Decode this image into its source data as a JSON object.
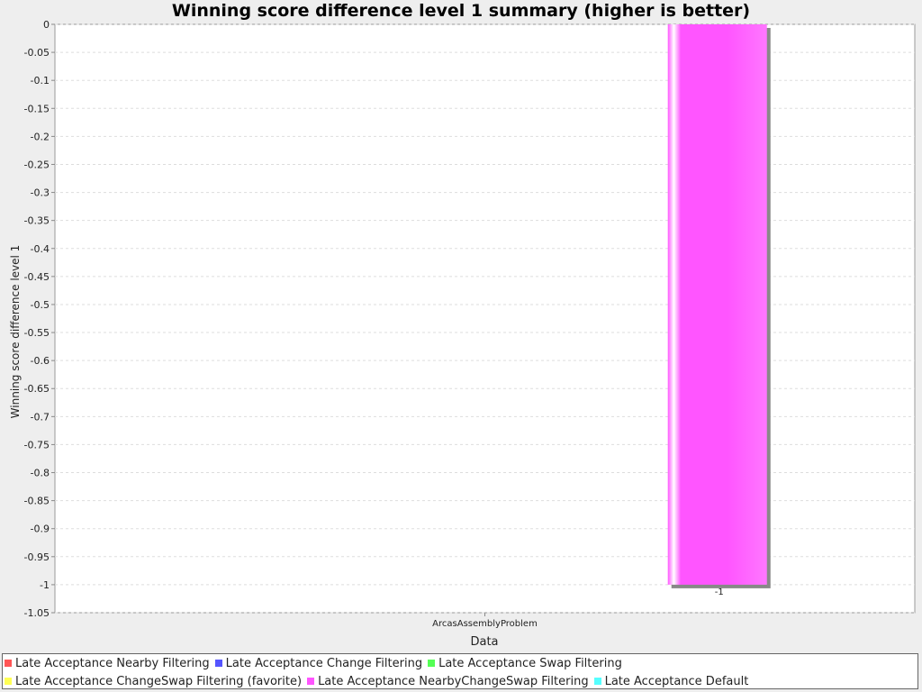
{
  "chart_data": {
    "type": "bar",
    "title": "Winning score difference level 1 summary (higher is better)",
    "xlabel": "Data",
    "ylabel": "Winning score difference level 1",
    "categories": [
      "ArcasAssemblyProblem"
    ],
    "ylim": [
      -1.05,
      0
    ],
    "yticks": [
      "0",
      "-0.05",
      "-0.1",
      "-0.15",
      "-0.2",
      "-0.25",
      "-0.3",
      "-0.35",
      "-0.4",
      "-0.45",
      "-0.5",
      "-0.55",
      "-0.6",
      "-0.65",
      "-0.7",
      "-0.75",
      "-0.8",
      "-0.85",
      "-0.9",
      "-0.95",
      "-1",
      "-1.05"
    ],
    "grid": true,
    "legend_position": "bottom",
    "series": [
      {
        "name": "Late Acceptance Nearby Filtering",
        "color": "#ff5555",
        "values": [
          null
        ]
      },
      {
        "name": "Late Acceptance Change Filtering",
        "color": "#5555ff",
        "values": [
          null
        ]
      },
      {
        "name": "Late Acceptance Swap Filtering",
        "color": "#55ff55",
        "values": [
          null
        ]
      },
      {
        "name": "Late Acceptance ChangeSwap Filtering (favorite)",
        "color": "#ffff55",
        "values": [
          null
        ]
      },
      {
        "name": "Late Acceptance NearbyChangeSwap Filtering",
        "color": "#ff55ff",
        "values": [
          -1
        ]
      },
      {
        "name": "Late Acceptance Default",
        "color": "#55ffff",
        "values": [
          null
        ]
      }
    ],
    "data_labels": [
      "-1"
    ]
  }
}
